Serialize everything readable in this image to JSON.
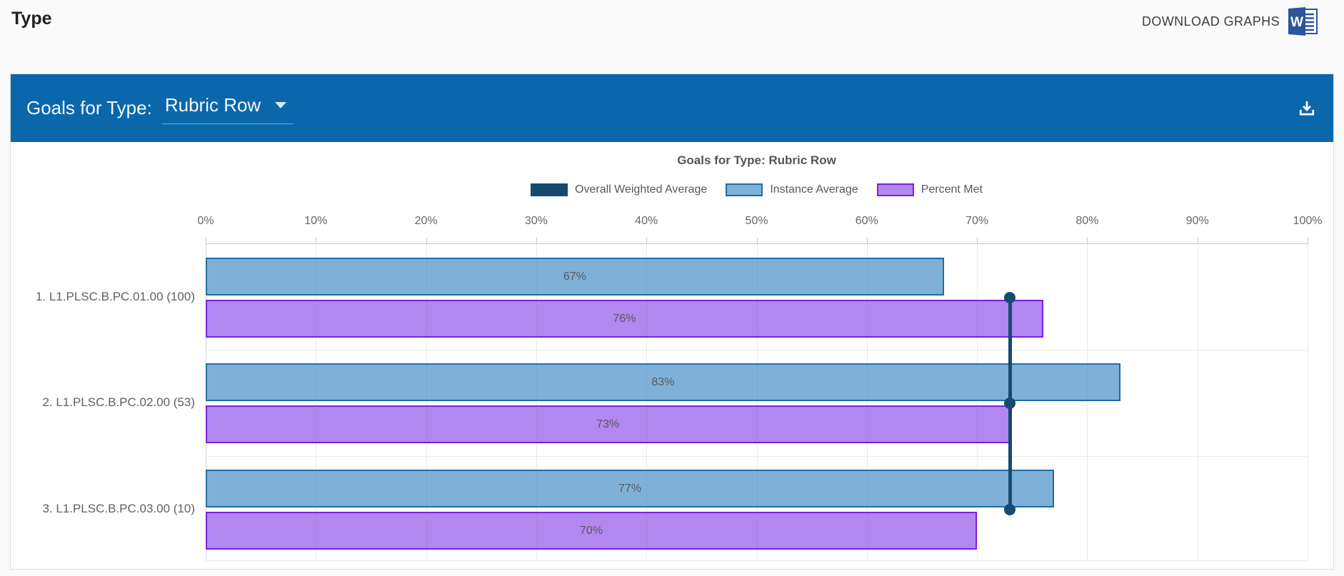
{
  "page": {
    "title": "Type"
  },
  "toolbar": {
    "download_graphs_label": "DOWNLOAD GRAPHS",
    "word_icon": "word-document-icon"
  },
  "panel": {
    "header": {
      "label": "Goals for Type:",
      "selected_type": "Rubric Row",
      "caret_icon": "chevron-down-icon",
      "download_icon": "download-icon",
      "bg_color": "#0a67ac"
    }
  },
  "chart_data": {
    "type": "bar",
    "orientation": "horizontal",
    "title": "Goals for Type: Rubric Row",
    "grid": true,
    "legend_position": "top",
    "x_axis": {
      "min": 0,
      "max": 100,
      "step": 10,
      "unit": "%",
      "tick_labels": [
        "0%",
        "10%",
        "20%",
        "30%",
        "40%",
        "50%",
        "60%",
        "70%",
        "80%",
        "90%",
        "100%"
      ]
    },
    "categories": [
      "1. L1.PLSC.B.PC.01.00 (100)",
      "2. L1.PLSC.B.PC.02.00 (53)",
      "3. L1.PLSC.B.PC.03.00 (10)"
    ],
    "series": [
      {
        "name": "Overall Weighted Average",
        "display": "line-marker",
        "value": 73,
        "values": [
          73,
          73,
          73
        ],
        "color": "#164a70",
        "border_color": "#164a70"
      },
      {
        "name": "Instance Average",
        "display": "bar",
        "values": [
          67,
          83,
          77
        ],
        "labels": [
          "67%",
          "83%",
          "77%"
        ],
        "color": "#7fb1d8",
        "border_color": "#1b6ea6"
      },
      {
        "name": "Percent Met",
        "display": "bar",
        "values": [
          76,
          73,
          70
        ],
        "labels": [
          "76%",
          "73%",
          "70%"
        ],
        "color": "#b287f0",
        "border_color": "#7b1fe0"
      }
    ]
  }
}
